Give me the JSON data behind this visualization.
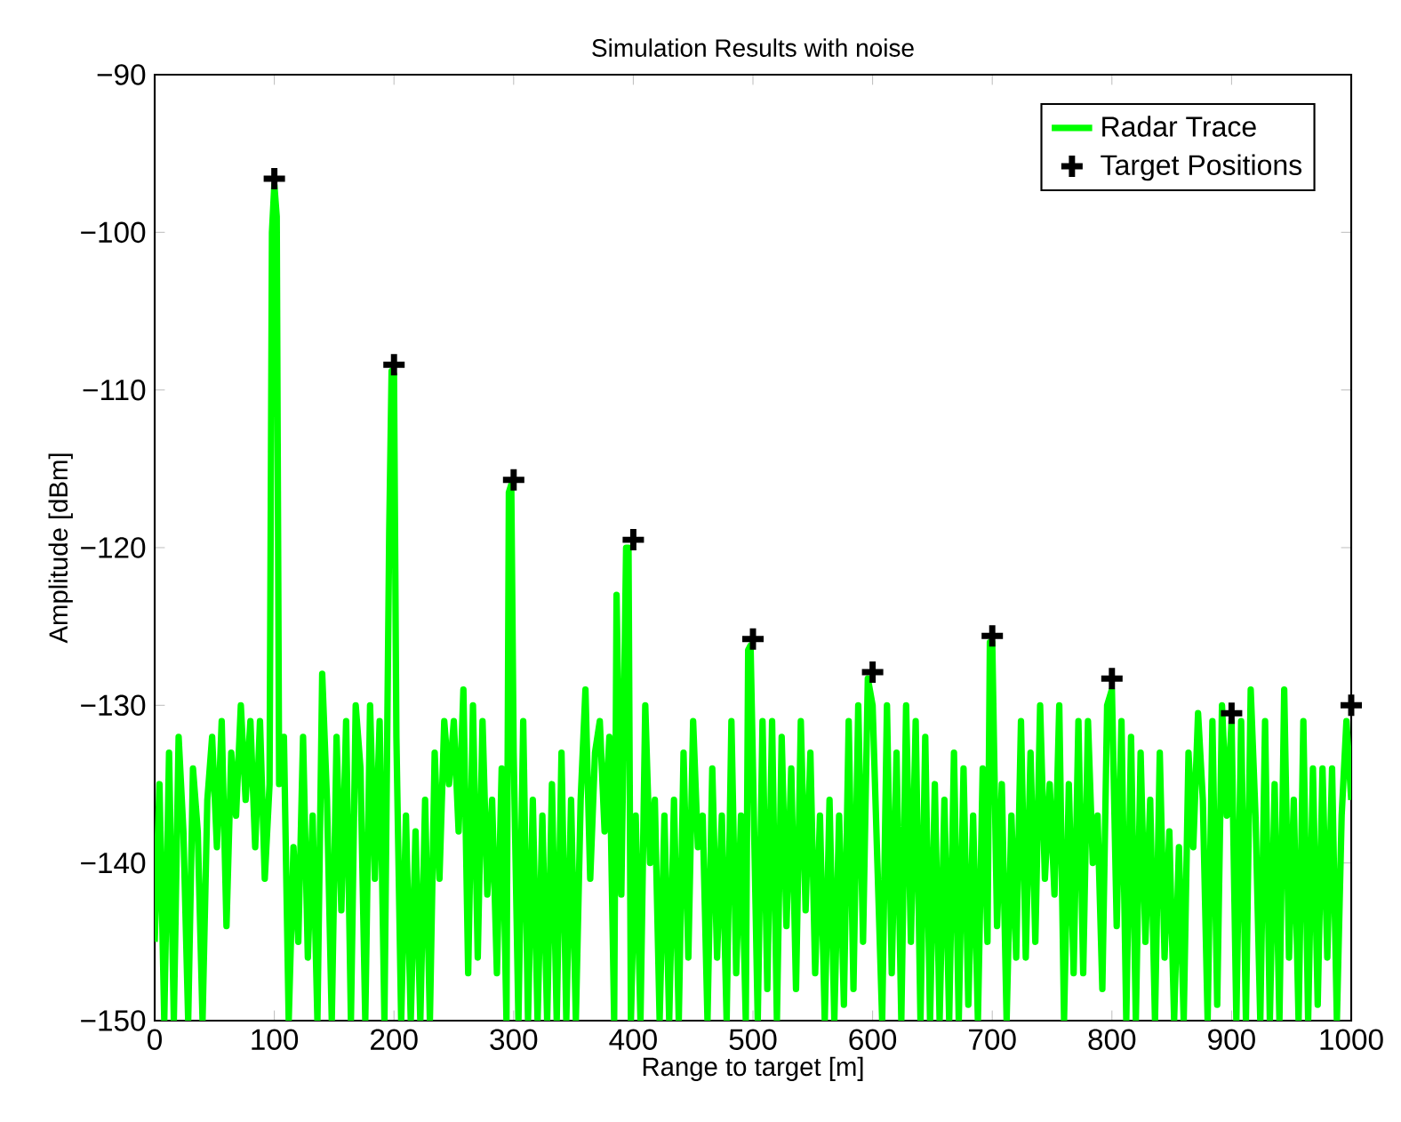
{
  "chart_data": {
    "type": "line",
    "title": "Simulation Results with noise",
    "xlabel": "Range to target [m]",
    "ylabel": "Amplitude [dBm]",
    "xlim": [
      0,
      1000
    ],
    "ylim": [
      -150,
      -90
    ],
    "xticks": [
      0,
      100,
      200,
      300,
      400,
      500,
      600,
      700,
      800,
      900,
      1000
    ],
    "yticks": [
      {
        "value": -150,
        "label": "−150"
      },
      {
        "value": -140,
        "label": "−140"
      },
      {
        "value": -130,
        "label": "−130"
      },
      {
        "value": -120,
        "label": "−120"
      },
      {
        "value": -110,
        "label": "−110"
      },
      {
        "value": -100,
        "label": "−100"
      },
      {
        "value": -90,
        "label": "−90"
      }
    ],
    "legend": "top right",
    "series": [
      {
        "name": "Radar Trace",
        "type": "line",
        "color": "#00ff00",
        "marker": "none",
        "line_style": "solid",
        "x": [
          0,
          4,
          8,
          12,
          16,
          20,
          24,
          28,
          32,
          36,
          40,
          44,
          48,
          52,
          56,
          60,
          64,
          68,
          72,
          76,
          80,
          84,
          88,
          92,
          96,
          98,
          100,
          102,
          104,
          108,
          112,
          116,
          120,
          124,
          128,
          132,
          136,
          140,
          144,
          148,
          152,
          156,
          160,
          164,
          168,
          172,
          176,
          180,
          184,
          188,
          192,
          196,
          198,
          200,
          202,
          206,
          210,
          214,
          218,
          222,
          226,
          230,
          234,
          238,
          242,
          246,
          250,
          254,
          258,
          262,
          266,
          270,
          274,
          278,
          282,
          286,
          290,
          294,
          296,
          298,
          300,
          304,
          308,
          312,
          316,
          320,
          324,
          328,
          332,
          336,
          340,
          344,
          348,
          352,
          356,
          360,
          364,
          368,
          372,
          376,
          380,
          384,
          386,
          390,
          394,
          396,
          398,
          402,
          406,
          410,
          414,
          418,
          422,
          426,
          430,
          434,
          438,
          442,
          446,
          450,
          454,
          458,
          462,
          466,
          470,
          474,
          478,
          482,
          486,
          490,
          494,
          496,
          498,
          500,
          504,
          508,
          512,
          516,
          520,
          524,
          528,
          532,
          536,
          540,
          544,
          548,
          552,
          556,
          560,
          564,
          568,
          572,
          576,
          580,
          584,
          588,
          592,
          596,
          600,
          604,
          608,
          612,
          616,
          620,
          624,
          628,
          632,
          636,
          640,
          644,
          648,
          652,
          656,
          660,
          664,
          668,
          672,
          676,
          680,
          684,
          688,
          692,
          696,
          698,
          700,
          704,
          708,
          712,
          716,
          720,
          724,
          728,
          732,
          736,
          740,
          744,
          748,
          752,
          756,
          760,
          764,
          768,
          772,
          776,
          780,
          784,
          788,
          792,
          796,
          800,
          804,
          808,
          812,
          816,
          820,
          824,
          828,
          832,
          836,
          840,
          844,
          848,
          852,
          856,
          860,
          864,
          868,
          872,
          876,
          880,
          884,
          888,
          892,
          896,
          900,
          904,
          908,
          912,
          916,
          920,
          924,
          928,
          932,
          936,
          940,
          944,
          948,
          952,
          956,
          960,
          964,
          968,
          972,
          976,
          980,
          984,
          988,
          992,
          996,
          1000
        ],
        "values": [
          -145,
          -135,
          -150,
          -133,
          -150,
          -132,
          -138,
          -150,
          -134,
          -138,
          -150,
          -136,
          -132,
          -139,
          -131,
          -144,
          -133,
          -137,
          -130,
          -136,
          -131,
          -139,
          -131,
          -141,
          -135,
          -100,
          -97,
          -99,
          -135,
          -132,
          -150,
          -139,
          -145,
          -132,
          -146,
          -137,
          -150,
          -128,
          -136,
          -150,
          -132,
          -143,
          -131,
          -150,
          -130,
          -134,
          -150,
          -130,
          -141,
          -131,
          -150,
          -119,
          -108.8,
          -109,
          -132,
          -150,
          -137,
          -150,
          -138,
          -150,
          -136,
          -150,
          -133,
          -141,
          -131,
          -135,
          -131,
          -138,
          -129,
          -147,
          -130,
          -146,
          -131,
          -142,
          -136,
          -147,
          -134,
          -150,
          -116.5,
          -116,
          -133,
          -150,
          -131,
          -150,
          -136,
          -150,
          -137,
          -150,
          -135,
          -150,
          -133,
          -150,
          -136,
          -150,
          -136,
          -129,
          -141,
          -133,
          -131,
          -138,
          -132,
          -150,
          -123,
          -142,
          -120,
          -120,
          -150,
          -137,
          -150,
          -130,
          -140,
          -136,
          -150,
          -137,
          -150,
          -136,
          -150,
          -133,
          -146,
          -131,
          -139,
          -137,
          -150,
          -134,
          -146,
          -137,
          -150,
          -131,
          -147,
          -137,
          -150,
          -126.5,
          -126.2,
          -134,
          -150,
          -131,
          -148,
          -131,
          -150,
          -132,
          -144,
          -134,
          -148,
          -131,
          -143,
          -133,
          -147,
          -137,
          -150,
          -136,
          -150,
          -137,
          -149,
          -131,
          -148,
          -130,
          -145,
          -128.3,
          -130,
          -140,
          -150,
          -130,
          -147,
          -133,
          -150,
          -130,
          -145,
          -131,
          -150,
          -132,
          -150,
          -135,
          -150,
          -136,
          -150,
          -133,
          -150,
          -134,
          -149,
          -137,
          -150,
          -134,
          -145,
          -126,
          -126,
          -144,
          -135,
          -150,
          -137,
          -146,
          -131,
          -146,
          -133,
          -145,
          -130,
          -141,
          -135,
          -142,
          -130,
          -150,
          -135,
          -147,
          -131,
          -147,
          -131,
          -140,
          -137,
          -148,
          -130,
          -129,
          -144,
          -131,
          -150,
          -132,
          -150,
          -133,
          -145,
          -136,
          -150,
          -133,
          -146,
          -138,
          -150,
          -139,
          -150,
          -133,
          -139,
          -130.5,
          -136,
          -150,
          -131,
          -149,
          -130,
          -137,
          -131,
          -150,
          -131,
          -150,
          -129,
          -137,
          -150,
          -131,
          -150,
          -135,
          -150,
          -129,
          -146,
          -136,
          -150,
          -131,
          -150,
          -134,
          -149,
          -134,
          -146,
          -134,
          -150,
          -137,
          -131,
          -136
        ]
      },
      {
        "name": "Target Positions",
        "type": "scatter",
        "color": "#000000",
        "marker": "cross",
        "x": [
          100,
          200,
          300,
          400,
          500,
          600,
          700,
          800,
          900,
          1000
        ],
        "values": [
          -96.6,
          -108.4,
          -115.7,
          -119.5,
          -125.8,
          -127.9,
          -125.6,
          -128.3,
          -130.5,
          -130.0
        ]
      }
    ]
  }
}
